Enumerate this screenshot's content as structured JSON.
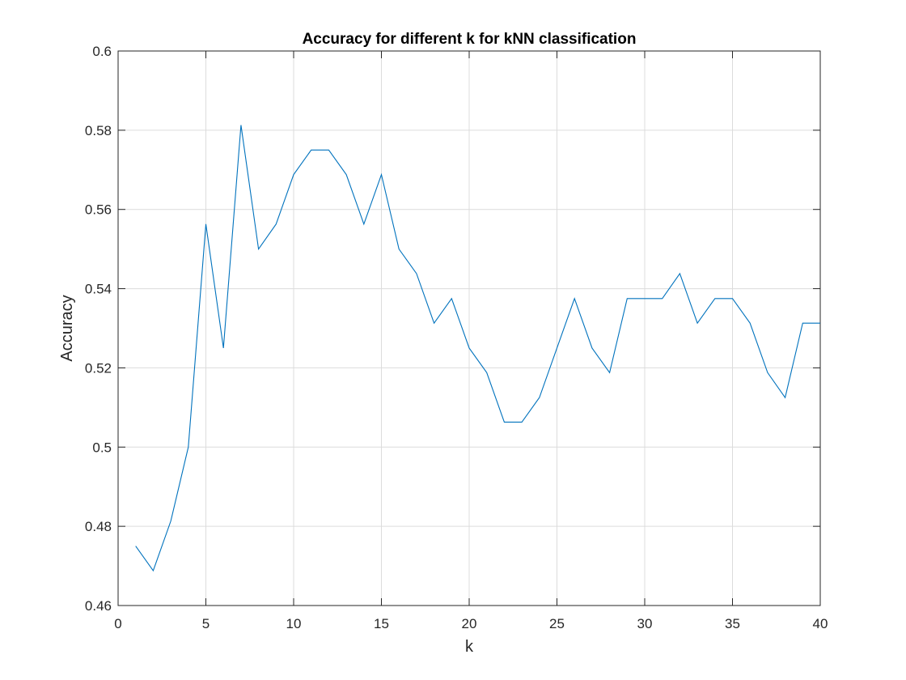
{
  "chart_data": {
    "type": "line",
    "title": "Accuracy for different k for kNN classification",
    "xlabel": "k",
    "ylabel": "Accuracy",
    "xlim": [
      0,
      40
    ],
    "ylim": [
      0.46,
      0.6
    ],
    "xticks": [
      0,
      5,
      10,
      15,
      20,
      25,
      30,
      35,
      40
    ],
    "xtick_labels": [
      "0",
      "5",
      "10",
      "15",
      "20",
      "25",
      "30",
      "35",
      "40"
    ],
    "yticks": [
      0.46,
      0.48,
      0.5,
      0.52,
      0.54,
      0.56,
      0.58,
      0.6
    ],
    "ytick_labels": [
      "0.46",
      "0.48",
      "0.5",
      "0.52",
      "0.54",
      "0.56",
      "0.58",
      "0.6"
    ],
    "grid": true,
    "series_color": "#0072bd",
    "x": [
      1,
      2,
      3,
      4,
      5,
      6,
      7,
      8,
      9,
      10,
      11,
      12,
      13,
      14,
      15,
      16,
      17,
      18,
      19,
      20,
      21,
      22,
      23,
      24,
      25,
      26,
      27,
      28,
      29,
      30,
      31,
      32,
      33,
      34,
      35,
      36,
      37,
      38,
      39,
      40
    ],
    "y": [
      0.475,
      0.4688,
      0.4813,
      0.5,
      0.5563,
      0.525,
      0.5813,
      0.55,
      0.5563,
      0.5688,
      0.575,
      0.575,
      0.5688,
      0.5563,
      0.5688,
      0.55,
      0.5438,
      0.5313,
      0.5375,
      0.525,
      0.5188,
      0.5063,
      0.5063,
      0.5125,
      0.525,
      0.5375,
      0.525,
      0.5188,
      0.5375,
      0.5375,
      0.5375,
      0.5438,
      0.5313,
      0.5375,
      0.5375,
      0.5313,
      0.5188,
      0.5125,
      0.5313,
      0.5313
    ]
  }
}
